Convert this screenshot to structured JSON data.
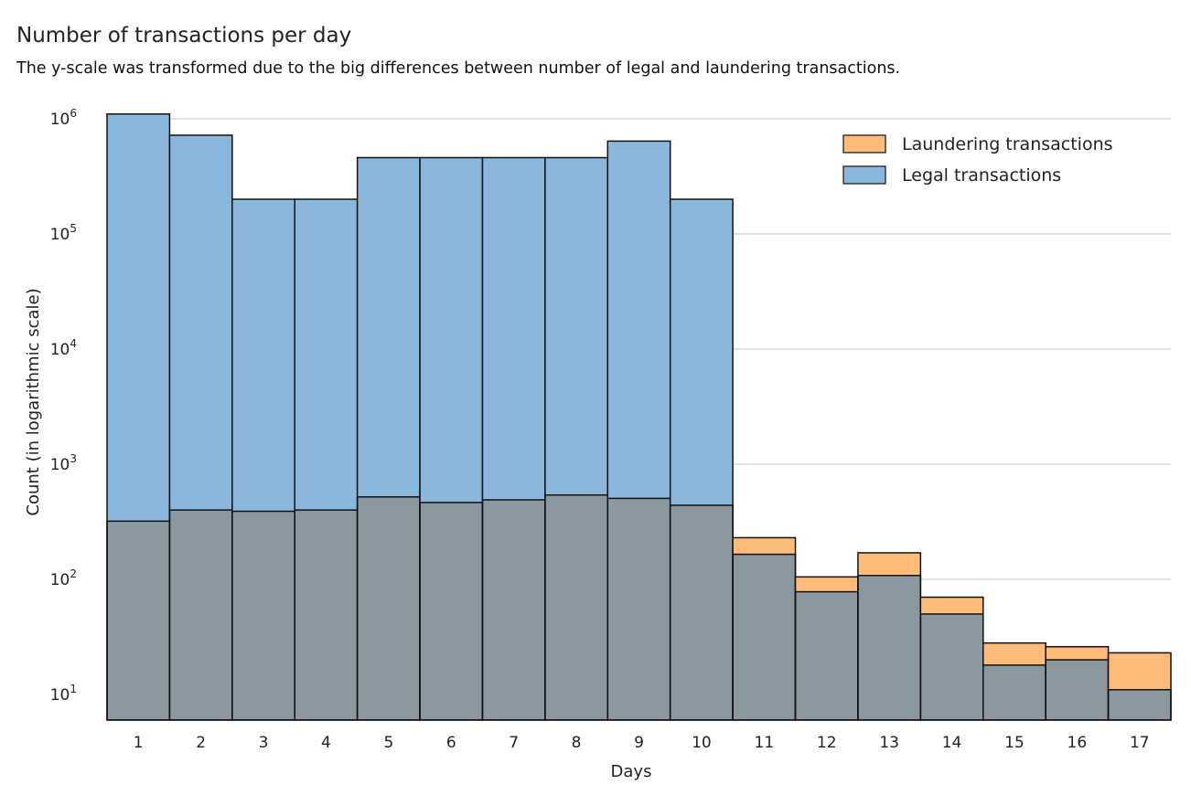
{
  "chart_data": {
    "type": "bar",
    "title": "Number of transactions per day",
    "subtitle": "The y-scale was transformed due to the big differences between number of legal and laundering transactions.",
    "xlabel": "Days",
    "ylabel": "Count (in logarithmic scale)",
    "yscale": "log",
    "ylim": [
      6,
      1200000
    ],
    "yticks": [
      10,
      100,
      1000,
      10000,
      100000,
      1000000
    ],
    "grid": "y",
    "legend": "top-right",
    "categories": [
      "1",
      "2",
      "3",
      "4",
      "5",
      "6",
      "7",
      "8",
      "9",
      "10",
      "11",
      "12",
      "13",
      "14",
      "15",
      "16",
      "17"
    ],
    "series": [
      {
        "name": "Laundering transactions",
        "color": "#ffbb78",
        "values": [
          320,
          400,
          390,
          400,
          520,
          465,
          490,
          540,
          505,
          440,
          230,
          105,
          170,
          70,
          28,
          26,
          23
        ]
      },
      {
        "name": "Legal transactions",
        "color": "#8ab8dc",
        "values": [
          1100000,
          720000,
          200000,
          200000,
          460000,
          460000,
          460000,
          460000,
          640000,
          200000,
          165,
          78,
          108,
          50,
          18,
          20,
          11
        ]
      }
    ],
    "overlap_color": "#8a999f"
  }
}
